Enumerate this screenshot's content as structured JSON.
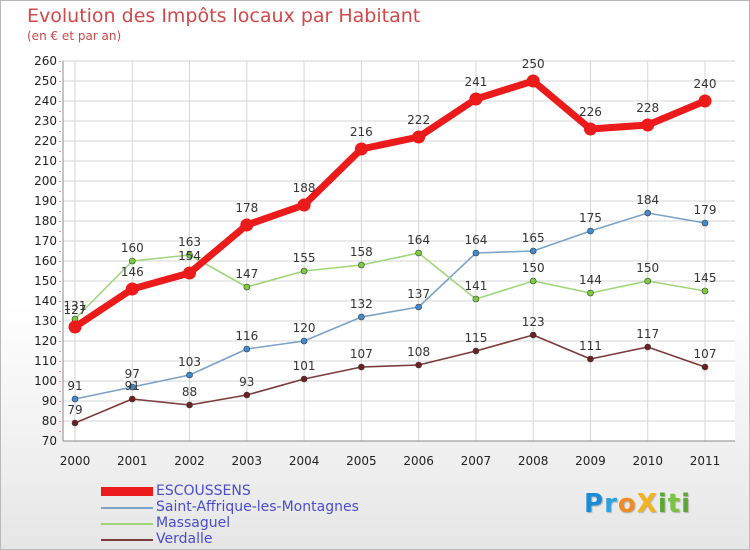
{
  "title": "Evolution des Impôts locaux par Habitant",
  "subtitle": "(en € et par an)",
  "logo": {
    "text": "ProXiti",
    "letters": [
      {
        "char": "P",
        "color": "#1c8bd6"
      },
      {
        "char": "r",
        "color": "#2aa1e0"
      },
      {
        "char": "o",
        "color": "#f08a24"
      },
      {
        "char": "X",
        "color": "#f3b320"
      },
      {
        "char": "i",
        "color": "#5aa832"
      },
      {
        "char": "t",
        "color": "#7cc242"
      },
      {
        "char": "i",
        "color": "#5aa832"
      }
    ]
  },
  "chart_data": {
    "type": "line",
    "title": "Evolution des Impôts locaux par Habitant",
    "subtitle": "(en € et par an)",
    "xlabel": "",
    "ylabel": "",
    "categories": [
      "2000",
      "2001",
      "2002",
      "2003",
      "2004",
      "2005",
      "2006",
      "2007",
      "2008",
      "2009",
      "2010",
      "2011"
    ],
    "ylim": [
      70,
      260
    ],
    "ytick_step": 10,
    "grid": true,
    "legend_position": "bottom-left",
    "series": [
      {
        "name": "ESCOUSSENS",
        "color": "#ec1b1b",
        "marker_fill": "#ec1b1b",
        "emphasis": true,
        "values": [
          127,
          146,
          154,
          178,
          188,
          216,
          222,
          241,
          250,
          226,
          228,
          240
        ],
        "labels": [
          "127",
          "146",
          "154",
          "178",
          "188",
          "216",
          "222",
          "241",
          "250",
          "226",
          "228",
          "240"
        ]
      },
      {
        "name": "Saint-Affrique-les-Montagnes",
        "color": "#7ba3c8",
        "marker_fill": "#3e8bd0",
        "emphasis": false,
        "values": [
          91,
          97,
          103,
          116,
          120,
          132,
          137,
          164,
          165,
          175,
          184,
          179
        ],
        "labels": [
          "91",
          "97",
          "103",
          "116",
          "120",
          "132",
          "137",
          "164",
          "165",
          "175",
          "184",
          "179"
        ]
      },
      {
        "name": "Massaguel",
        "color": "#9fd67c",
        "marker_fill": "#7ccd3c",
        "emphasis": false,
        "values": [
          131,
          160,
          163,
          147,
          155,
          158,
          164,
          141,
          150,
          144,
          150,
          145
        ],
        "labels": [
          "131",
          "160",
          "163",
          "147",
          "155",
          "158",
          "164",
          "141",
          "150",
          "144",
          "150",
          "145"
        ]
      },
      {
        "name": "Verdalle",
        "color": "#7b3b3b",
        "marker_fill": "#6e1f1f",
        "emphasis": false,
        "values": [
          79,
          91,
          88,
          93,
          101,
          107,
          108,
          115,
          123,
          111,
          117,
          107
        ],
        "labels": [
          "79",
          "91",
          "88",
          "93",
          "101",
          "107",
          "108",
          "115",
          "123",
          "111",
          "117",
          "107"
        ]
      }
    ]
  }
}
